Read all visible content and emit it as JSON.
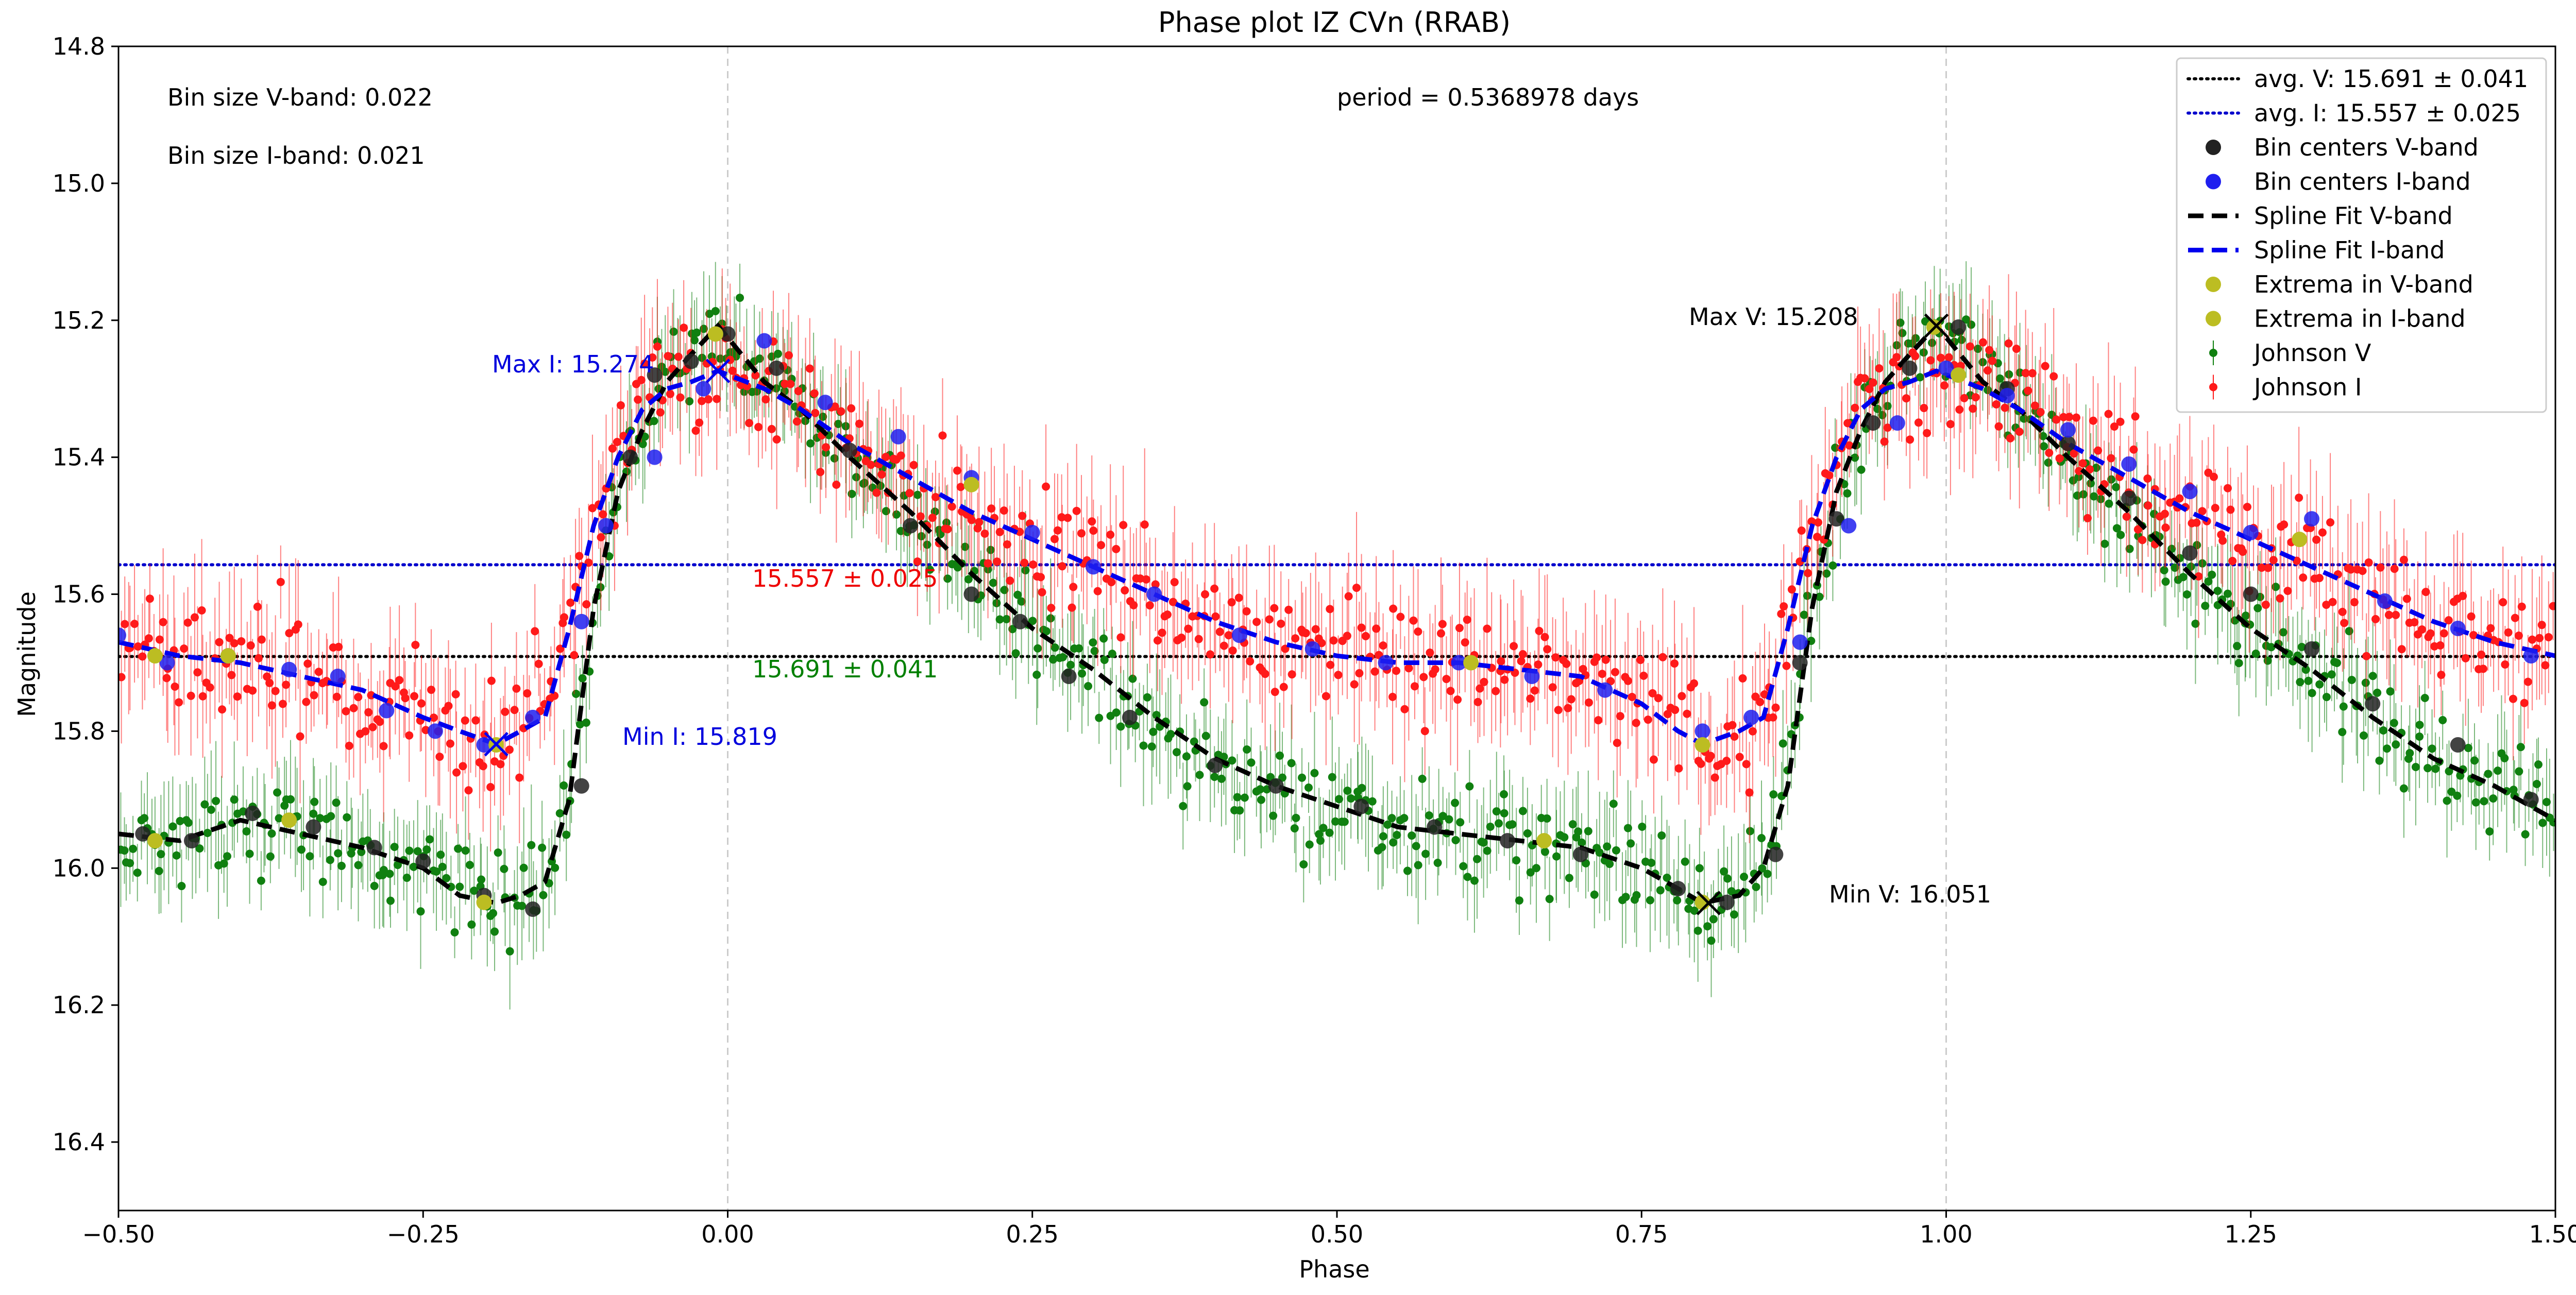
{
  "chart_data": {
    "type": "scatter",
    "title": "Phase plot IZ CVn (RRAB)",
    "xlabel": "Phase",
    "ylabel": "Magnitude",
    "xlim": [
      -0.5,
      1.5
    ],
    "ylim": [
      16.5,
      14.8
    ],
    "y_inverted": true,
    "x_ticks": [
      "−0.50",
      "−0.25",
      "0.00",
      "0.25",
      "0.50",
      "0.75",
      "1.00",
      "1.25",
      "1.50"
    ],
    "x_tick_values": [
      -0.5,
      -0.25,
      0.0,
      0.25,
      0.5,
      0.75,
      1.0,
      1.25,
      1.5
    ],
    "y_ticks": [
      "14.8",
      "15.0",
      "15.2",
      "15.4",
      "15.6",
      "15.8",
      "16.0",
      "16.2",
      "16.4"
    ],
    "y_tick_values": [
      14.8,
      15.0,
      15.2,
      15.4,
      15.6,
      15.8,
      16.0,
      16.2,
      16.4
    ],
    "vertical_reference_lines_x": [
      0.0,
      1.0
    ],
    "grid": false,
    "legend_position": "top-right",
    "annotations": {
      "bin_size_v": "Bin size V-band: 0.022",
      "bin_size_i": "Bin size I-band: 0.021",
      "period": "period = 0.5368978 days",
      "max_v": "Max V: 15.208",
      "min_v": "Min V: 16.051",
      "max_i": "Max I: 15.274",
      "min_i": "Min I: 15.819",
      "avg_v_label": "15.691 ± 0.041",
      "avg_i_label": "15.557 ± 0.025"
    },
    "legend": [
      {
        "label": "avg. V: 15.691 ± 0.041",
        "kind": "dotted-line",
        "color": "#000000"
      },
      {
        "label": "avg. I: 15.557 ± 0.025",
        "kind": "dotted-line",
        "color": "#0000cc"
      },
      {
        "label": "Bin centers V-band",
        "kind": "dot",
        "color": "#222222"
      },
      {
        "label": "Bin centers I-band",
        "kind": "dot",
        "color": "#1f1fef"
      },
      {
        "label": "Spline Fit V-band",
        "kind": "dashed-line",
        "color": "#000000"
      },
      {
        "label": "Spline Fit I-band",
        "kind": "dashed-line",
        "color": "#0000ee"
      },
      {
        "label": "Extrema in V-band",
        "kind": "dot",
        "color": "#bcbd22"
      },
      {
        "label": "Extrema in I-band",
        "kind": "dot",
        "color": "#bcbd22"
      },
      {
        "label": "Johnson V",
        "kind": "errorbar-dot",
        "color": "#108010"
      },
      {
        "label": "Johnson I",
        "kind": "errorbar-dot",
        "color": "#ff1a1a"
      }
    ],
    "series": [
      {
        "name": "avg. V: 15.691 ± 0.041",
        "kind": "hline",
        "value": 15.691,
        "color": "#000000"
      },
      {
        "name": "avg. I: 15.557 ± 0.025",
        "kind": "hline",
        "value": 15.557,
        "color": "#0000cc"
      },
      {
        "name": "Spline Fit V-band",
        "kind": "spline",
        "color": "#000000",
        "x": [
          -0.5,
          -0.45,
          -0.4,
          -0.35,
          -0.3,
          -0.25,
          -0.22,
          -0.19,
          -0.17,
          -0.15,
          -0.13,
          -0.11,
          -0.09,
          -0.07,
          -0.05,
          -0.03,
          -0.008,
          0.03,
          0.06,
          0.1,
          0.15,
          0.2,
          0.25,
          0.3,
          0.35,
          0.4,
          0.45,
          0.5,
          0.55,
          0.6,
          0.65,
          0.7,
          0.75,
          0.78,
          0.8,
          0.83,
          0.85,
          0.87,
          0.89,
          0.91,
          0.93,
          0.95,
          0.97,
          0.992,
          1.03,
          1.06,
          1.1,
          1.15,
          1.2,
          1.25,
          1.3,
          1.35,
          1.4,
          1.45,
          1.5
        ],
        "y": [
          15.95,
          15.96,
          15.93,
          15.95,
          15.97,
          16.0,
          16.04,
          16.051,
          16.04,
          16.02,
          15.9,
          15.62,
          15.45,
          15.36,
          15.29,
          15.25,
          15.208,
          15.29,
          15.33,
          15.4,
          15.48,
          15.57,
          15.65,
          15.71,
          15.78,
          15.84,
          15.88,
          15.91,
          15.94,
          15.95,
          15.96,
          15.97,
          16.0,
          16.03,
          16.051,
          16.04,
          16.0,
          15.88,
          15.62,
          15.45,
          15.36,
          15.29,
          15.25,
          15.208,
          15.29,
          15.33,
          15.4,
          15.48,
          15.57,
          15.65,
          15.71,
          15.78,
          15.84,
          15.88,
          15.93
        ]
      },
      {
        "name": "Spline Fit I-band",
        "kind": "spline",
        "color": "#0000ee",
        "x": [
          -0.5,
          -0.45,
          -0.4,
          -0.35,
          -0.3,
          -0.25,
          -0.22,
          -0.19,
          -0.17,
          -0.15,
          -0.13,
          -0.11,
          -0.09,
          -0.07,
          -0.05,
          -0.03,
          -0.008,
          0.03,
          0.06,
          0.1,
          0.15,
          0.2,
          0.25,
          0.3,
          0.35,
          0.4,
          0.45,
          0.5,
          0.55,
          0.6,
          0.65,
          0.7,
          0.75,
          0.78,
          0.8,
          0.83,
          0.85,
          0.87,
          0.89,
          0.91,
          0.93,
          0.95,
          0.97,
          0.992,
          1.03,
          1.06,
          1.1,
          1.15,
          1.2,
          1.25,
          1.3,
          1.35,
          1.4,
          1.45,
          1.5
        ],
        "y": [
          15.67,
          15.69,
          15.7,
          15.72,
          15.74,
          15.78,
          15.8,
          15.819,
          15.8,
          15.78,
          15.65,
          15.5,
          15.4,
          15.33,
          15.3,
          15.29,
          15.274,
          15.3,
          15.33,
          15.38,
          15.43,
          15.48,
          15.52,
          15.56,
          15.6,
          15.64,
          15.67,
          15.69,
          15.7,
          15.7,
          15.71,
          15.72,
          15.76,
          15.8,
          15.819,
          15.8,
          15.78,
          15.65,
          15.5,
          15.4,
          15.33,
          15.3,
          15.29,
          15.274,
          15.3,
          15.33,
          15.38,
          15.43,
          15.48,
          15.52,
          15.56,
          15.6,
          15.64,
          15.67,
          15.69
        ]
      },
      {
        "name": "Bin centers V-band",
        "kind": "points",
        "color": "#222222",
        "x": [
          -0.48,
          -0.44,
          -0.39,
          -0.34,
          -0.29,
          -0.25,
          -0.2,
          -0.16,
          -0.12,
          -0.08,
          -0.06,
          -0.03,
          0.0,
          0.04,
          0.1,
          0.15,
          0.2,
          0.24,
          0.28,
          0.33,
          0.4,
          0.45,
          0.52,
          0.58,
          0.64,
          0.7,
          0.78,
          0.82,
          0.86,
          0.88,
          0.91,
          0.94,
          0.97,
          1.01,
          1.05,
          1.1,
          1.15,
          1.2,
          1.25,
          1.3,
          1.35,
          1.42,
          1.48
        ],
        "y": [
          15.95,
          15.96,
          15.92,
          15.94,
          15.97,
          15.99,
          16.04,
          16.06,
          15.88,
          15.4,
          15.28,
          15.26,
          15.22,
          15.27,
          15.39,
          15.5,
          15.6,
          15.64,
          15.72,
          15.78,
          15.85,
          15.88,
          15.91,
          15.94,
          15.96,
          15.98,
          16.03,
          16.05,
          15.98,
          15.7,
          15.49,
          15.35,
          15.27,
          15.21,
          15.3,
          15.38,
          15.46,
          15.54,
          15.6,
          15.68,
          15.76,
          15.82,
          15.9
        ]
      },
      {
        "name": "Bin centers I-band",
        "kind": "points",
        "color": "#1f1fef",
        "x": [
          -0.5,
          -0.46,
          -0.41,
          -0.36,
          -0.32,
          -0.28,
          -0.24,
          -0.2,
          -0.16,
          -0.12,
          -0.1,
          -0.06,
          -0.02,
          0.03,
          0.08,
          0.14,
          0.2,
          0.25,
          0.3,
          0.35,
          0.42,
          0.48,
          0.54,
          0.6,
          0.66,
          0.72,
          0.8,
          0.84,
          0.88,
          0.92,
          0.96,
          1.0,
          1.05,
          1.1,
          1.15,
          1.2,
          1.25,
          1.3,
          1.36,
          1.42,
          1.48
        ],
        "y": [
          15.66,
          15.7,
          15.69,
          15.71,
          15.72,
          15.77,
          15.8,
          15.82,
          15.78,
          15.64,
          15.5,
          15.4,
          15.3,
          15.23,
          15.32,
          15.37,
          15.43,
          15.51,
          15.56,
          15.6,
          15.66,
          15.68,
          15.7,
          15.7,
          15.72,
          15.74,
          15.8,
          15.78,
          15.67,
          15.5,
          15.35,
          15.27,
          15.31,
          15.36,
          15.41,
          15.45,
          15.51,
          15.49,
          15.61,
          15.65,
          15.69
        ]
      },
      {
        "name": "Extrema in V-band",
        "kind": "points",
        "color": "#bcbd22",
        "x": [
          -0.47,
          -0.36,
          -0.2,
          -0.01,
          0.2,
          0.67,
          0.8,
          0.99
        ],
        "y": [
          15.96,
          15.93,
          16.05,
          15.22,
          15.44,
          15.96,
          16.05,
          15.21
        ]
      },
      {
        "name": "Extrema in I-band",
        "kind": "points",
        "color": "#bcbd22",
        "x": [
          -0.47,
          -0.41,
          -0.19,
          0.61,
          0.8,
          1.01,
          1.29
        ],
        "y": [
          15.69,
          15.69,
          15.82,
          15.7,
          15.82,
          15.28,
          15.52
        ]
      },
      {
        "name": "Max/Min markers",
        "kind": "x-markers",
        "color_v": "#000000",
        "color_i": "#0000ee",
        "v": [
          {
            "x": 0.992,
            "y": 15.208
          },
          {
            "x": 0.805,
            "y": 16.051
          }
        ],
        "i": [
          {
            "x": -0.008,
            "y": 15.274
          },
          {
            "x": -0.19,
            "y": 15.819
          }
        ]
      },
      {
        "name": "Johnson V",
        "kind": "errorbar-scatter",
        "color": "#108010",
        "shape": "spline-plus-scatter",
        "scatter_sd_mag": 0.05,
        "errorbar_mag": 0.06,
        "x_start": -0.5,
        "x_end": 1.5,
        "n_points": 700,
        "follows": "Spline Fit V-band"
      },
      {
        "name": "Johnson I",
        "kind": "errorbar-scatter",
        "color": "#ff1a1a",
        "shape": "spline-plus-scatter",
        "scatter_sd_mag": 0.06,
        "errorbar_mag": 0.075,
        "x_start": -0.5,
        "x_end": 1.5,
        "n_points": 700,
        "follows": "Spline Fit I-band"
      }
    ]
  }
}
